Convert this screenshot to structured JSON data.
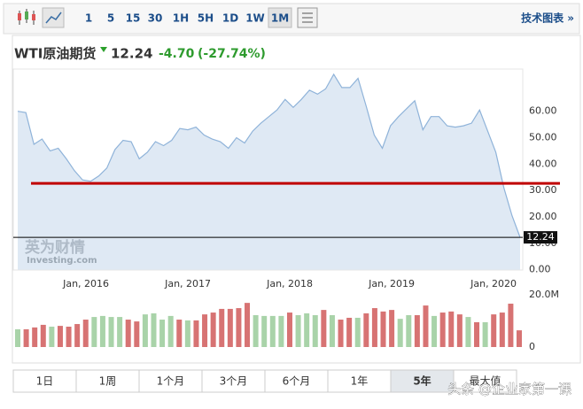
{
  "toolbar": {
    "intervals": [
      "1",
      "5",
      "15",
      "30",
      "1H",
      "5H",
      "1D",
      "1W",
      "1M"
    ],
    "selected": 8,
    "link": "技术图表 »"
  },
  "header": {
    "name": "WTI原油期货",
    "price": "12.24",
    "change": "-4.70",
    "change_pct": "(-27.74%)"
  },
  "chart_data": [
    {
      "type": "area",
      "xlim": [
        2015.33,
        2020.26
      ],
      "ylim": [
        0,
        75
      ],
      "xticks": [
        {
          "value": 2016,
          "label": "Jan, 2016"
        },
        {
          "value": 2017,
          "label": "Jan, 2017"
        },
        {
          "value": 2018,
          "label": "Jan, 2018"
        },
        {
          "value": 2019,
          "label": "Jan, 2019"
        },
        {
          "value": 2020,
          "label": "Jan, 2020"
        }
      ],
      "yticks": [
        {
          "value": 0,
          "label": "0.00"
        },
        {
          "value": 10,
          "label": "10.00"
        },
        {
          "value": 20,
          "label": "20.00"
        },
        {
          "value": 30,
          "label": "30.00"
        },
        {
          "value": 40,
          "label": "40.00"
        },
        {
          "value": 50,
          "label": "50.00"
        },
        {
          "value": 60,
          "label": "60.00"
        }
      ],
      "reference_line": {
        "value": 32.7,
        "color": "#c00000"
      },
      "series": [
        {
          "name": "WTI",
          "color": "#8fb3d9",
          "values": [
            60,
            59.5,
            47.5,
            49.5,
            45,
            46,
            42,
            37.5,
            34,
            33.5,
            35.5,
            38.5,
            45.5,
            49,
            48.5,
            42,
            44.5,
            48.5,
            47,
            49,
            53.5,
            53,
            54,
            51,
            49.5,
            48.5,
            46,
            50,
            48,
            52.5,
            55.5,
            58,
            60.5,
            64.5,
            61.5,
            64.5,
            68,
            66.5,
            68.5,
            74,
            69,
            69,
            72.5,
            62,
            51,
            46,
            54.5,
            58,
            61,
            64,
            53,
            58,
            58,
            54.5,
            54,
            54.5,
            55.5,
            60.5,
            52.5,
            44.5,
            31,
            20.5,
            12.24
          ]
        }
      ],
      "watermark": [
        "英为财情",
        "Investing.com"
      ]
    },
    {
      "type": "bar",
      "ylim": [
        0,
        20
      ],
      "yticks": [
        {
          "value": 20,
          "label": "20.0M"
        },
        0
      ],
      "values": [
        6.8,
        6.8,
        7.5,
        8.5,
        7.8,
        8.1,
        7.8,
        8.8,
        10.5,
        11.5,
        11.9,
        11.5,
        11.5,
        10.5,
        9.8,
        12.5,
        12.9,
        10.5,
        11.9,
        10.5,
        10.2,
        10.2,
        12.5,
        13.2,
        14.6,
        14.6,
        14.9,
        16.9,
        12.2,
        11.9,
        11.9,
        11.9,
        13.2,
        12.2,
        12.9,
        12.2,
        14.2,
        12.2,
        10.5,
        11.2,
        11.2,
        12.9,
        14.9,
        13.6,
        14.2,
        10.8,
        12.2,
        12.2,
        15.9,
        11.9,
        13.2,
        13.6,
        12.5,
        11.5,
        9.5,
        9.5,
        12.5,
        13.2,
        16.6,
        6.4
      ],
      "colors": [
        "g",
        "r",
        "r",
        "r",
        "g",
        "r",
        "r",
        "r",
        "r",
        "g",
        "g",
        "g",
        "g",
        "r",
        "r",
        "g",
        "g",
        "g",
        "g",
        "r",
        "g",
        "r",
        "r",
        "r",
        "r",
        "r",
        "r",
        "r",
        "g",
        "g",
        "g",
        "g",
        "r",
        "g",
        "g",
        "g",
        "r",
        "g",
        "r",
        "r",
        "g",
        "r",
        "r",
        "r",
        "r",
        "g",
        "g",
        "r",
        "r",
        "g",
        "r",
        "r",
        "r",
        "g",
        "r",
        "g",
        "r",
        "r",
        "r",
        "r"
      ],
      "palette": {
        "g": "#a9d3a9",
        "r": "#d77373"
      }
    }
  ],
  "tabs": {
    "labels": [
      "1日",
      "1周",
      "1个月",
      "3个月",
      "6个月",
      "1年",
      "5年",
      "最大值"
    ],
    "selected": 6
  },
  "overlay": "头条 @企业家第一课"
}
